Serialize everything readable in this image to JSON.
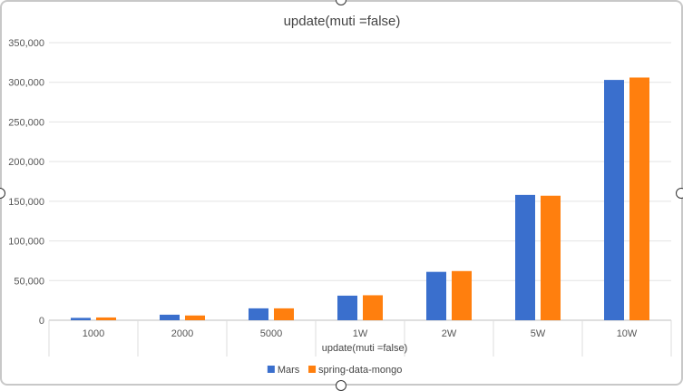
{
  "chart_data": {
    "type": "bar",
    "title": "update(muti =false)",
    "xlabel": "update(muti =false)",
    "ylabel": "",
    "categories": [
      "1000",
      "2000",
      "5000",
      "1W",
      "2W",
      "5W",
      "10W"
    ],
    "series": [
      {
        "name": "Mars",
        "color": "#3a6fcd",
        "values": [
          3000,
          7000,
          15000,
          31000,
          61000,
          158000,
          303000
        ]
      },
      {
        "name": "spring-data-mongo",
        "color": "#ff7f0e",
        "values": [
          3500,
          6000,
          15000,
          31500,
          62000,
          157000,
          306000
        ]
      }
    ],
    "ylim": [
      0,
      350000
    ],
    "yticks": [
      0,
      50000,
      100000,
      150000,
      200000,
      250000,
      300000,
      350000
    ],
    "ytick_labels": [
      "0",
      "50,000",
      "100,000",
      "150,000",
      "200,000",
      "250,000",
      "300,000",
      "350,000"
    ],
    "grid": true,
    "legend": "bottom-center"
  }
}
